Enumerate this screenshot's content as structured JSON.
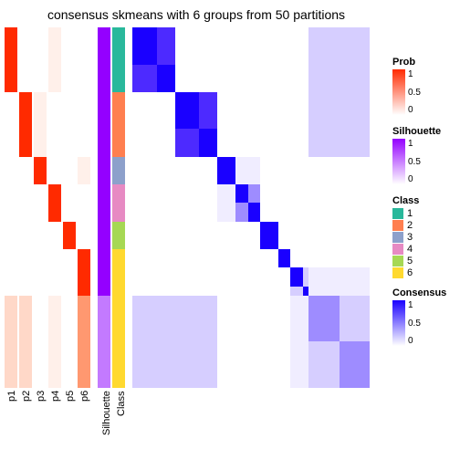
{
  "title": "consensus skmeans with 6 groups from 50 partitions",
  "colors": {
    "white": "#ffffff",
    "prob_max": "#ff2a00",
    "prob_mid": "#ff9870",
    "prob_low": "#ffd8c8",
    "prob_faint": "#fff0ea",
    "sil_max": "#9400ff",
    "sil_mid": "#c37aff",
    "sil_low": "#e7d0ff",
    "cons_max": "#1a00ff",
    "cons_high": "#4d2aff",
    "cons_mid": "#9e8cff",
    "cons_low": "#d6ceff",
    "cons_faint": "#f0edff",
    "class1": "#29b89b",
    "class2": "#ff7f50",
    "class3": "#8da0cb",
    "class4": "#e78ac3",
    "class5": "#a6d854",
    "class6": "#ffd92f"
  },
  "row_groups": [
    7,
    7,
    3,
    4,
    3,
    2,
    3,
    10
  ],
  "prob_columns": {
    "p1": [
      "prob_max",
      "prob_max",
      "prob_max",
      "prob_max",
      "prob_max",
      "prob_max",
      "prob_max",
      "white",
      "white",
      "white",
      "white",
      "white",
      "white",
      "white",
      "white",
      "white",
      "white",
      "white",
      "white",
      "white",
      "white",
      "white",
      "white",
      "white",
      "white",
      "white",
      "white",
      "white",
      "white",
      "prob_low",
      "prob_low",
      "prob_low",
      "prob_low",
      "prob_low",
      "prob_low",
      "prob_low",
      "prob_low",
      "prob_low",
      "prob_low"
    ],
    "p2": [
      "white",
      "white",
      "white",
      "white",
      "white",
      "white",
      "white",
      "prob_max",
      "prob_max",
      "prob_max",
      "prob_max",
      "prob_max",
      "prob_max",
      "prob_max",
      "white",
      "white",
      "white",
      "white",
      "white",
      "white",
      "white",
      "white",
      "white",
      "white",
      "white",
      "white",
      "white",
      "white",
      "white",
      "prob_low",
      "prob_low",
      "prob_low",
      "prob_low",
      "prob_low",
      "prob_low",
      "prob_low",
      "prob_low",
      "prob_low",
      "prob_low"
    ],
    "p3": [
      "white",
      "white",
      "white",
      "white",
      "white",
      "white",
      "white",
      "prob_faint",
      "prob_faint",
      "prob_faint",
      "prob_faint",
      "prob_faint",
      "prob_faint",
      "prob_faint",
      "prob_max",
      "prob_max",
      "prob_max",
      "white",
      "white",
      "white",
      "white",
      "white",
      "white",
      "white",
      "white",
      "white",
      "white",
      "white",
      "white",
      "white",
      "white",
      "white",
      "white",
      "white",
      "white",
      "white",
      "white",
      "white",
      "white"
    ],
    "p4": [
      "prob_faint",
      "prob_faint",
      "prob_faint",
      "prob_faint",
      "prob_faint",
      "prob_faint",
      "prob_faint",
      "white",
      "white",
      "white",
      "white",
      "white",
      "white",
      "white",
      "white",
      "white",
      "white",
      "prob_max",
      "prob_max",
      "prob_max",
      "prob_max",
      "white",
      "white",
      "white",
      "white",
      "white",
      "white",
      "white",
      "white",
      "prob_faint",
      "prob_faint",
      "prob_faint",
      "prob_faint",
      "prob_faint",
      "prob_faint",
      "prob_faint",
      "prob_faint",
      "prob_faint",
      "prob_faint"
    ],
    "p5": [
      "white",
      "white",
      "white",
      "white",
      "white",
      "white",
      "white",
      "white",
      "white",
      "white",
      "white",
      "white",
      "white",
      "white",
      "white",
      "white",
      "white",
      "white",
      "white",
      "white",
      "white",
      "prob_max",
      "prob_max",
      "prob_max",
      "white",
      "white",
      "white",
      "white",
      "white",
      "white",
      "white",
      "white",
      "white",
      "white",
      "white",
      "white",
      "white",
      "white",
      "white"
    ],
    "p6": [
      "white",
      "white",
      "white",
      "white",
      "white",
      "white",
      "white",
      "white",
      "white",
      "white",
      "white",
      "white",
      "white",
      "white",
      "prob_faint",
      "prob_faint",
      "prob_faint",
      "white",
      "white",
      "white",
      "white",
      "white",
      "white",
      "white",
      "prob_max",
      "prob_max",
      "prob_max",
      "prob_max",
      "prob_max",
      "prob_mid",
      "prob_mid",
      "prob_mid",
      "prob_mid",
      "prob_mid",
      "prob_mid",
      "prob_mid",
      "prob_mid",
      "prob_mid",
      "prob_mid"
    ]
  },
  "silhouette": [
    "sil_max",
    "sil_max",
    "sil_max",
    "sil_max",
    "sil_max",
    "sil_max",
    "sil_max",
    "sil_max",
    "sil_max",
    "sil_max",
    "sil_max",
    "sil_max",
    "sil_max",
    "sil_max",
    "sil_max",
    "sil_max",
    "sil_max",
    "sil_max",
    "sil_max",
    "sil_max",
    "sil_max",
    "sil_max",
    "sil_max",
    "sil_max",
    "sil_max",
    "sil_max",
    "sil_max",
    "sil_max",
    "sil_max",
    "sil_mid",
    "sil_mid",
    "sil_mid",
    "sil_mid",
    "sil_mid",
    "sil_mid",
    "sil_mid",
    "sil_mid",
    "sil_mid",
    "sil_mid"
  ],
  "class": [
    "class1",
    "class1",
    "class1",
    "class1",
    "class1",
    "class1",
    "class1",
    "class2",
    "class2",
    "class2",
    "class2",
    "class2",
    "class2",
    "class2",
    "class3",
    "class3",
    "class3",
    "class4",
    "class4",
    "class4",
    "class4",
    "class5",
    "class5",
    "class5",
    "class6",
    "class6",
    "class6",
    "class6",
    "class6",
    "class6",
    "class6",
    "class6",
    "class6",
    "class6",
    "class6",
    "class6",
    "class6",
    "class6",
    "class6"
  ],
  "consensus_blocks": [
    [
      [
        "cons_max",
        "cons_high"
      ],
      [
        "cons_high",
        "cons_max"
      ]
    ],
    [
      [
        "cons_max",
        "cons_high"
      ],
      [
        "cons_high",
        "cons_max"
      ]
    ],
    [
      [
        "cons_max"
      ]
    ],
    [
      [
        "cons_max",
        "cons_mid"
      ],
      [
        "cons_mid",
        "cons_max"
      ]
    ],
    [
      [
        "cons_max"
      ]
    ],
    [
      [
        "cons_max"
      ]
    ],
    [
      [
        "cons_max",
        "cons_low"
      ],
      [
        "cons_low",
        "cons_max"
      ]
    ],
    [
      [
        "cons_mid",
        "cons_low"
      ],
      [
        "cons_low",
        "cons_mid"
      ]
    ]
  ],
  "off_diag": [
    {
      "r": 0,
      "c": 7,
      "v": "cons_low"
    },
    {
      "r": 7,
      "c": 0,
      "v": "cons_low"
    },
    {
      "r": 1,
      "c": 7,
      "v": "cons_low"
    },
    {
      "r": 7,
      "c": 1,
      "v": "cons_low"
    },
    {
      "r": 6,
      "c": 7,
      "v": "cons_faint"
    },
    {
      "r": 7,
      "c": 6,
      "v": "cons_faint"
    },
    {
      "r": 2,
      "c": 3,
      "v": "cons_faint"
    },
    {
      "r": 3,
      "c": 2,
      "v": "cons_faint"
    }
  ],
  "x_labels": [
    "p1",
    "p2",
    "p3",
    "p4",
    "p5",
    "p6",
    "Silhouette",
    "Class"
  ],
  "legends": {
    "Prob": {
      "gradient": [
        "#ffffff",
        "#ff2a00"
      ],
      "ticks": [
        "1",
        "0.5",
        "0"
      ]
    },
    "Silhouette": {
      "gradient": [
        "#ffffff",
        "#9400ff"
      ],
      "ticks": [
        "1",
        "0.5",
        "0"
      ]
    },
    "Class": {
      "swatches": [
        [
          "1",
          "class1"
        ],
        [
          "2",
          "class2"
        ],
        [
          "3",
          "class3"
        ],
        [
          "4",
          "class4"
        ],
        [
          "5",
          "class5"
        ],
        [
          "6",
          "class6"
        ]
      ]
    },
    "Consensus": {
      "gradient": [
        "#ffffff",
        "#1a00ff"
      ],
      "ticks": [
        "1",
        "0.5",
        "0"
      ]
    }
  }
}
